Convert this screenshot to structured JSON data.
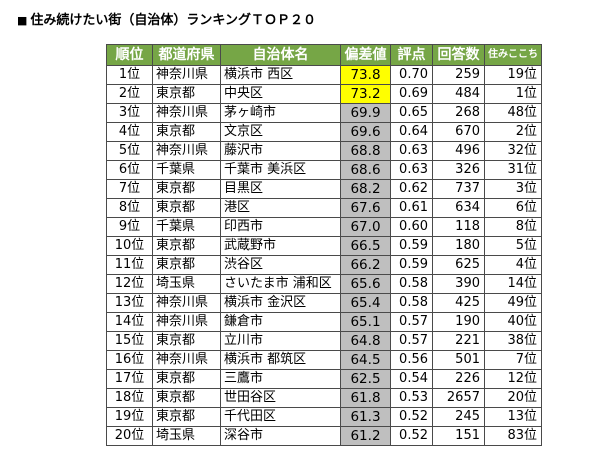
{
  "title": "住み続けたい街（自治体）ランキングＴＯＰ２０",
  "title_marker": "■",
  "headers": {
    "rank": "順位",
    "pref": "都道府県",
    "city": "自治体名",
    "dev": "偏差値",
    "score": "評点",
    "answers": "回答数",
    "live": "住みここち"
  },
  "colors": {
    "header_bg": "#76a646",
    "highlight": "#ffff00",
    "dev_bg": "#bfbfbf"
  },
  "rows": [
    {
      "rank": "1位",
      "pref": "神奈川県",
      "city": "横浜市 西区",
      "dev": "73.8",
      "score": "0.70",
      "answers": "259",
      "live": "19位"
    },
    {
      "rank": "2位",
      "pref": "東京都",
      "city": "中央区",
      "dev": "73.2",
      "score": "0.69",
      "answers": "484",
      "live": "1位"
    },
    {
      "rank": "3位",
      "pref": "神奈川県",
      "city": "茅ヶ崎市",
      "dev": "69.9",
      "score": "0.65",
      "answers": "268",
      "live": "48位"
    },
    {
      "rank": "4位",
      "pref": "東京都",
      "city": "文京区",
      "dev": "69.6",
      "score": "0.64",
      "answers": "670",
      "live": "2位"
    },
    {
      "rank": "5位",
      "pref": "神奈川県",
      "city": "藤沢市",
      "dev": "68.8",
      "score": "0.63",
      "answers": "496",
      "live": "32位"
    },
    {
      "rank": "6位",
      "pref": "千葉県",
      "city": "千葉市 美浜区",
      "dev": "68.6",
      "score": "0.63",
      "answers": "326",
      "live": "31位"
    },
    {
      "rank": "7位",
      "pref": "東京都",
      "city": "目黒区",
      "dev": "68.2",
      "score": "0.62",
      "answers": "737",
      "live": "3位"
    },
    {
      "rank": "8位",
      "pref": "東京都",
      "city": "港区",
      "dev": "67.6",
      "score": "0.61",
      "answers": "634",
      "live": "6位"
    },
    {
      "rank": "9位",
      "pref": "千葉県",
      "city": "印西市",
      "dev": "67.0",
      "score": "0.60",
      "answers": "118",
      "live": "8位"
    },
    {
      "rank": "10位",
      "pref": "東京都",
      "city": "武蔵野市",
      "dev": "66.5",
      "score": "0.59",
      "answers": "180",
      "live": "5位"
    },
    {
      "rank": "11位",
      "pref": "東京都",
      "city": "渋谷区",
      "dev": "66.2",
      "score": "0.59",
      "answers": "625",
      "live": "4位"
    },
    {
      "rank": "12位",
      "pref": "埼玉県",
      "city": "さいたま市 浦和区",
      "dev": "65.6",
      "score": "0.58",
      "answers": "390",
      "live": "14位"
    },
    {
      "rank": "13位",
      "pref": "神奈川県",
      "city": "横浜市 金沢区",
      "dev": "65.4",
      "score": "0.58",
      "answers": "425",
      "live": "49位"
    },
    {
      "rank": "14位",
      "pref": "神奈川県",
      "city": "鎌倉市",
      "dev": "65.1",
      "score": "0.57",
      "answers": "190",
      "live": "40位"
    },
    {
      "rank": "15位",
      "pref": "東京都",
      "city": "立川市",
      "dev": "64.8",
      "score": "0.57",
      "answers": "221",
      "live": "38位"
    },
    {
      "rank": "16位",
      "pref": "神奈川県",
      "city": "横浜市 都筑区",
      "dev": "64.5",
      "score": "0.56",
      "answers": "501",
      "live": "7位"
    },
    {
      "rank": "17位",
      "pref": "東京都",
      "city": "三鷹市",
      "dev": "62.5",
      "score": "0.54",
      "answers": "226",
      "live": "12位"
    },
    {
      "rank": "18位",
      "pref": "東京都",
      "city": "世田谷区",
      "dev": "61.8",
      "score": "0.53",
      "answers": "2657",
      "live": "20位"
    },
    {
      "rank": "19位",
      "pref": "東京都",
      "city": "千代田区",
      "dev": "61.3",
      "score": "0.52",
      "answers": "245",
      "live": "13位"
    },
    {
      "rank": "20位",
      "pref": "埼玉県",
      "city": "深谷市",
      "dev": "61.2",
      "score": "0.52",
      "answers": "151",
      "live": "83位"
    }
  ],
  "highlighted_ranks": [
    "1位",
    "2位"
  ]
}
